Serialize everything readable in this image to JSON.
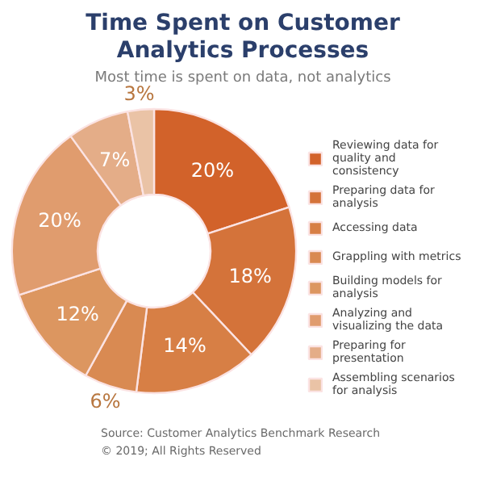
{
  "chart_data": {
    "type": "donut",
    "title": "Time Spent on Customer Analytics Processes",
    "subtitle": "Most time is spent on data, not analytics",
    "categories": [
      "Reviewing data for quality and consistency",
      "Preparing data for analysis",
      "Accessing data",
      "Grappling with metrics",
      "Building models for analysis",
      "Analyzing and visualizing the data",
      "Preparing for presentation",
      "Assembling scenarios for analysis"
    ],
    "values": [
      20,
      18,
      14,
      6,
      12,
      20,
      7,
      3
    ],
    "value_labels": [
      "20%",
      "18%",
      "14%",
      "6%",
      "12%",
      "20%",
      "7%",
      "3%"
    ],
    "colors": [
      "#d2622a",
      "#d4733a",
      "#d77f45",
      "#d98a52",
      "#dc9660",
      "#e09c6e",
      "#e4ad88",
      "#eac3a6"
    ],
    "legend": "right",
    "annotations": [
      "Source: Customer Analytics Benchmark Research",
      "© 2019; All Rights Reserved"
    ]
  }
}
